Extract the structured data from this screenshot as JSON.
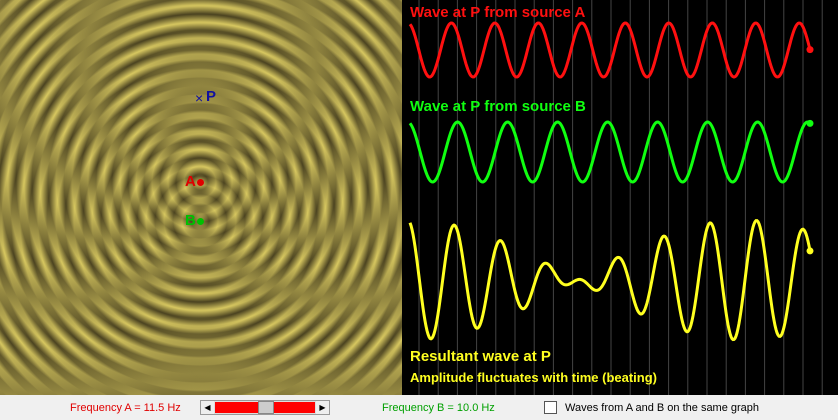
{
  "labels": {
    "source_a": "A",
    "source_b": "B",
    "point": "P"
  },
  "graphs": {
    "wave_a_title": "Wave at P from source A",
    "wave_b_title": "Wave at P from source B",
    "resultant_title": "Resultant wave at P",
    "resultant_note": "Amplitude fluctuates with time (beating)"
  },
  "controls": {
    "frequency_a": "Frequency A = 11.5 Hz",
    "frequency_b": "Frequency B = 10.0 Hz",
    "same_graph": "Waves from A and B on the same graph"
  }
}
